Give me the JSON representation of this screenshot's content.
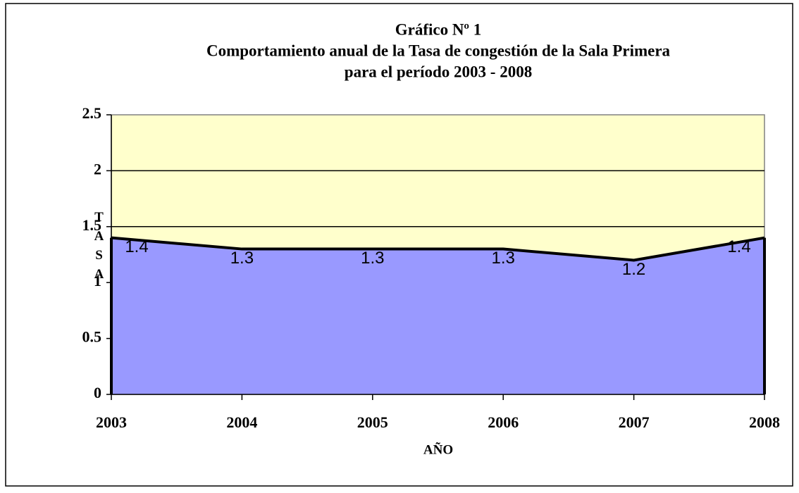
{
  "chart_data": {
    "type": "area",
    "title_lines": [
      "Gráfico Nº 1",
      "Comportamiento anual de la Tasa de congestión de la Sala Primera",
      "para el período 2003 - 2008"
    ],
    "x_label": "AÑO",
    "y_label": "TASA",
    "categories": [
      "2003",
      "2004",
      "2005",
      "2006",
      "2007",
      "2008"
    ],
    "values": [
      1.4,
      1.3,
      1.3,
      1.3,
      1.2,
      1.4
    ],
    "color": "#9999ff",
    "line_color": "#000000",
    "plot_background": "#ffffcc",
    "ylim": [
      0,
      2.5
    ],
    "yticks": [
      0,
      0.5,
      1,
      1.5,
      2,
      2.5
    ],
    "grid": true
  }
}
